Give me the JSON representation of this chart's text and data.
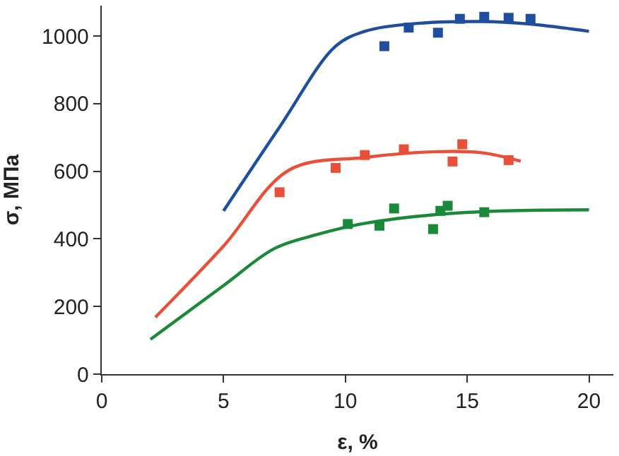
{
  "chart_data": {
    "type": "scatter",
    "xlabel": "ε, %",
    "ylabel": "σ, МПа",
    "xlim": [
      0,
      21
    ],
    "xticks": [
      0,
      5,
      10,
      15,
      20
    ],
    "ylim": [
      0,
      1090
    ],
    "yticks": [
      0,
      200,
      400,
      600,
      800,
      1000
    ],
    "series": [
      {
        "type": "line",
        "color": "#1f4e9e",
        "x": [
          5.0,
          7.3,
          9.6,
          10.8,
          12.7,
          15.6,
          17.5,
          20.0
        ],
        "values": [
          483,
          731,
          970,
          1014,
          1036,
          1043,
          1036,
          1014
        ]
      },
      {
        "marker": "square",
        "color": "#1f4e9e",
        "x": [
          11.6,
          12.6,
          13.8,
          14.7,
          15.7,
          16.7,
          17.6
        ],
        "values": [
          970,
          1025,
          1010,
          1051,
          1057,
          1054,
          1051
        ]
      },
      {
        "type": "line",
        "color": "#e8503a",
        "x": [
          2.2,
          5.0,
          7.7,
          10.8,
          13.7,
          15.6,
          17.2
        ],
        "values": [
          168,
          379,
          604,
          641,
          658,
          655,
          630
        ]
      },
      {
        "marker": "square",
        "color": "#e8503a",
        "x": [
          7.3,
          9.6,
          10.8,
          12.4,
          14.4,
          14.8,
          16.7
        ],
        "values": [
          538,
          610,
          648,
          665,
          629,
          680,
          633
        ]
      },
      {
        "type": "line",
        "color": "#1a8a3a",
        "x": [
          2.0,
          5.0,
          7.1,
          8.9,
          10.8,
          13.7,
          16.5,
          20.0
        ],
        "values": [
          103,
          262,
          372,
          414,
          446,
          472,
          483,
          486
        ]
      },
      {
        "marker": "square",
        "color": "#1a8a3a",
        "x": [
          10.1,
          11.4,
          12.0,
          13.6,
          13.9,
          14.2,
          15.7
        ],
        "values": [
          444,
          439,
          490,
          429,
          483,
          498,
          479
        ]
      }
    ]
  }
}
